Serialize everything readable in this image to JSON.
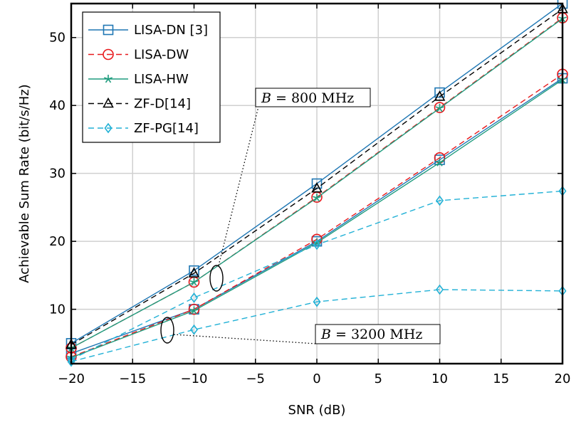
{
  "chart_data": {
    "type": "line",
    "xlabel": "SNR (dB)",
    "ylabel": "Achievable Sum Rate (bit/s/Hz)",
    "xlim": [
      -20,
      20
    ],
    "ylim": [
      2,
      55
    ],
    "xticks": [
      -20,
      -15,
      -10,
      -5,
      0,
      5,
      10,
      15,
      20
    ],
    "xtick_labels": [
      "−20",
      "−15",
      "−10",
      "−5",
      "0",
      "5",
      "10",
      "15",
      "20"
    ],
    "yticks": [
      10,
      20,
      30,
      40,
      50
    ],
    "ytick_labels": [
      "10",
      "20",
      "30",
      "40",
      "50"
    ],
    "grid": true,
    "legend_position": "top-left",
    "x": [
      -20,
      -10,
      0,
      10,
      20
    ],
    "series": [
      {
        "name": "LISA-DN [3]",
        "color": "#1f77b4",
        "dash": "solid",
        "marker": "square",
        "groups": [
          [
            5.0,
            15.7,
            28.5,
            41.9,
            55.0
          ],
          [
            3.5,
            10.0,
            20.0,
            32.0,
            44.0
          ]
        ]
      },
      {
        "name": "LISA-DW",
        "color": "#e8191c",
        "dash": "dashed",
        "marker": "circle",
        "groups": [
          [
            4.3,
            14.0,
            26.5,
            39.7,
            52.9
          ],
          [
            3.0,
            10.0,
            20.3,
            32.3,
            44.6
          ]
        ]
      },
      {
        "name": "LISA-HW",
        "color": "#1f9c7e",
        "dash": "solid",
        "marker": "star",
        "groups": [
          [
            4.3,
            14.0,
            26.4,
            39.6,
            52.8
          ],
          [
            2.9,
            9.8,
            19.8,
            31.6,
            43.8
          ]
        ]
      },
      {
        "name": "ZF-D[14]",
        "color": "#000000",
        "dash": "dashed",
        "marker": "triangle",
        "groups": [
          [
            4.8,
            15.3,
            27.8,
            41.3,
            54.2
          ]
        ]
      },
      {
        "name": "ZF-PG[14]",
        "color": "#22b1d6",
        "dash": "dashed",
        "marker": "diamond",
        "groups": [
          [
            2.6,
            11.7,
            19.5,
            26.0,
            27.4
          ],
          [
            2.3,
            7.0,
            11.1,
            12.9,
            12.7
          ]
        ]
      }
    ],
    "annotations": [
      {
        "label_var": "B",
        "label_rest": " = 800 MHz"
      },
      {
        "label_var": "B",
        "label_rest": " = 3200 MHz"
      }
    ]
  }
}
